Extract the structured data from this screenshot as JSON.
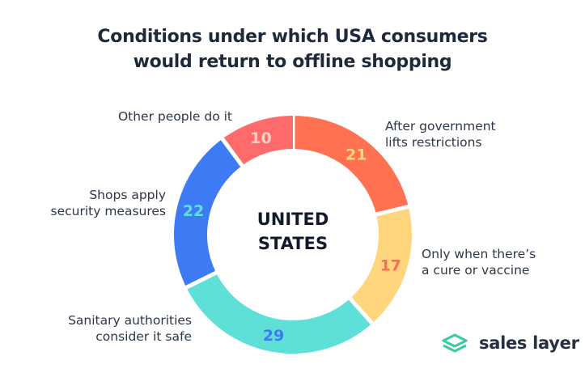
{
  "title_lines": [
    "Conditions under which USA consumers",
    "would return to offline shopping"
  ],
  "center_label": [
    "UNITED",
    "STATES"
  ],
  "chart_data": {
    "type": "pie",
    "donut": true,
    "title": "Conditions under which USA consumers would return to offline shopping",
    "categories": [
      "After government lifts restrictions",
      "Only when there’s a cure or vaccine",
      "Sanitary authorities consider it safe",
      "Shops apply security measures",
      "Other people do it"
    ],
    "values": [
      21,
      17,
      29,
      22,
      10
    ],
    "colors": [
      "#ff7150",
      "#ffd57e",
      "#5ee0d8",
      "#3d7bf5",
      "#ff6b6b"
    ],
    "value_label_colors": [
      "#ffd57e",
      "#ff6b57",
      "#3d7bf5",
      "#5ee0d8",
      "#ffd0c8"
    ],
    "label_lines": [
      [
        "After government",
        "lifts restrictions"
      ],
      [
        "Only when there’s",
        "a cure or vaccine"
      ],
      [
        "Sanitary authorities",
        "consider it safe"
      ],
      [
        "Shops apply",
        "security measures"
      ],
      [
        "Other people do it"
      ]
    ]
  },
  "brand": {
    "name": "sales layer",
    "logo_color": "#3cc7a6"
  }
}
